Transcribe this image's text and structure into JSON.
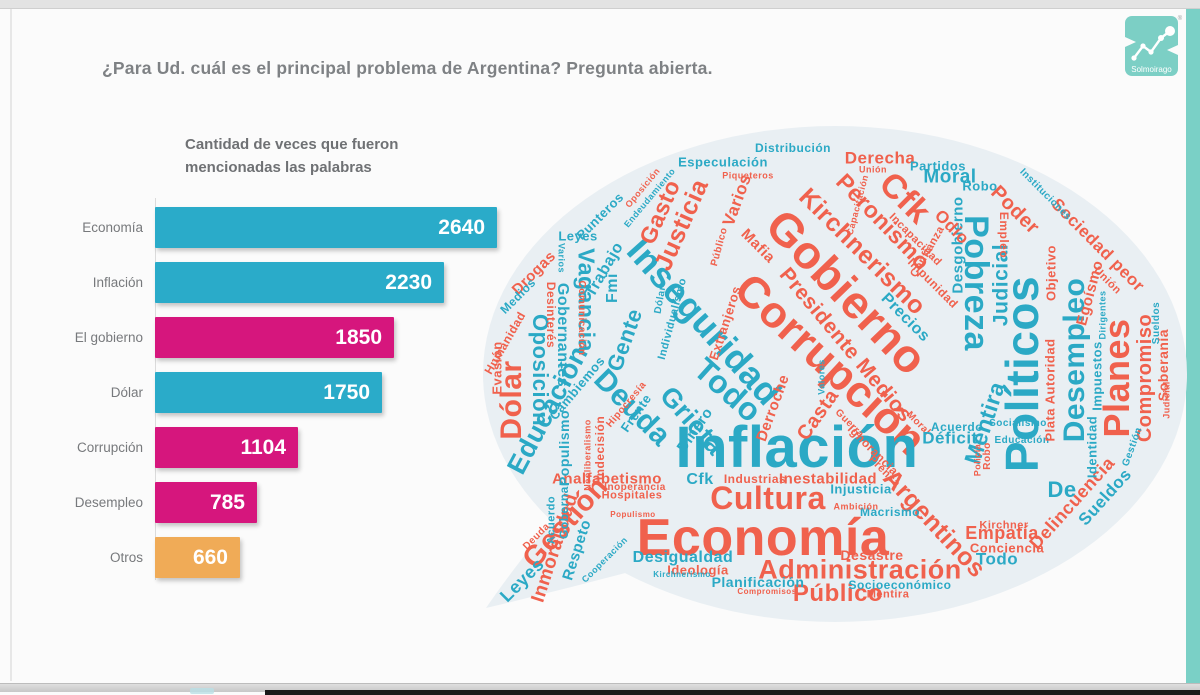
{
  "page": {
    "title": "¿Para Ud. cuál es el principal problema de Argentina? Pregunta abierta."
  },
  "logo": {
    "brand": "Solmoirago",
    "registered": "®",
    "color": "#7ccfc5"
  },
  "heading": {
    "line1": "Cantidad de veces que fueron",
    "line2": "mencionadas las palabras"
  },
  "chart_data": {
    "type": "bar",
    "orientation": "horizontal",
    "title": "Cantidad de veces que fueron mencionadas las palabras",
    "categories": [
      "Economía",
      "Inflación",
      "El gobierno",
      "Dólar",
      "Corrupción",
      "Desempleo",
      "Otros"
    ],
    "values": [
      2640,
      2230,
      1850,
      1750,
      1104,
      785,
      660
    ],
    "bar_colors": [
      "#2aabc9",
      "#2aabc9",
      "#d6167d",
      "#2aabc9",
      "#d6167d",
      "#d6167d",
      "#f0ab57"
    ],
    "value_labels_inside": true,
    "xlim": [
      0,
      2750
    ],
    "grid": false,
    "legend": "none"
  },
  "cloud": {
    "shape": "speech-bubble",
    "bubble_color": "#e9eff3",
    "teal": "#2ba9c5",
    "red": "#f0614d",
    "words": [
      [
        "Gobierno",
        367,
        174,
        46,
        46,
        1
      ],
      [
        "Corrupción",
        350,
        247,
        44,
        43,
        1
      ],
      [
        "Inseguridad",
        224,
        204,
        36,
        48,
        0
      ],
      [
        "Inflación",
        317,
        330,
        58,
        0,
        0
      ],
      [
        "Cultura",
        288,
        380,
        32,
        0,
        1
      ],
      [
        "Economía",
        283,
        420,
        52,
        0,
        1
      ],
      [
        "Políticos",
        542,
        256,
        46,
        -90,
        0
      ],
      [
        "Pobreza",
        496,
        165,
        34,
        90,
        0
      ],
      [
        "Desempleo",
        595,
        242,
        30,
        -90,
        0
      ],
      [
        "Planes",
        637,
        260,
        36,
        -90,
        1
      ],
      [
        "Administración",
        380,
        452,
        27,
        0,
        1
      ],
      [
        "Público",
        358,
        476,
        24,
        0,
        1
      ],
      [
        "Todo",
        248,
        272,
        32,
        42,
        0
      ],
      [
        "Deuda",
        152,
        290,
        30,
        45,
        0
      ],
      [
        "Cfk",
        425,
        80,
        34,
        45,
        1
      ],
      [
        "Kirchnerismo",
        382,
        134,
        25,
        45,
        1
      ],
      [
        "Peronismo",
        403,
        104,
        23,
        46,
        1
      ],
      [
        "Presidente Medios",
        366,
        227,
        21,
        50,
        1
      ],
      [
        "Dólar",
        32,
        282,
        30,
        -90,
        1
      ],
      [
        "Educación",
        68,
        292,
        27,
        -62,
        0
      ],
      [
        "Gestión",
        86,
        405,
        29,
        -48,
        1
      ],
      [
        "Vagancia",
        106,
        182,
        23,
        90,
        0
      ],
      [
        "Oposición",
        60,
        252,
        22,
        90,
        0
      ],
      [
        "Grieta",
        212,
        303,
        27,
        48,
        0
      ],
      [
        "Justicia",
        202,
        107,
        25,
        -66,
        1
      ],
      [
        "Gasto",
        180,
        94,
        23,
        -66,
        1
      ],
      [
        "Argentinos",
        454,
        406,
        25,
        47,
        1
      ],
      [
        "Mentira",
        505,
        305,
        23,
        -72,
        0
      ],
      [
        "Judicial",
        521,
        167,
        21,
        -90,
        0
      ],
      [
        "Compromiso",
        665,
        260,
        20,
        -90,
        1
      ],
      [
        "Gente",
        145,
        222,
        22,
        -70,
        0
      ],
      [
        "Inmoralidad",
        75,
        430,
        19,
        -72,
        1
      ],
      [
        "Poder",
        535,
        92,
        20,
        45,
        1
      ],
      [
        "Moral",
        470,
        59,
        19,
        0,
        0
      ],
      [
        "Derecha",
        400,
        40,
        17,
        0,
        1
      ],
      [
        "Sociedad peor",
        618,
        127,
        17,
        45,
        1
      ],
      [
        "Delincuencia",
        592,
        385,
        18,
        -48,
        1
      ],
      [
        "Sueldos",
        625,
        379,
        17,
        -48,
        0
      ],
      [
        "Empatía",
        522,
        415,
        18,
        0,
        1
      ],
      [
        "Desgobierno",
        478,
        127,
        15,
        -90,
        0
      ],
      [
        "Leyes",
        42,
        462,
        18,
        -45,
        0
      ],
      [
        "Respeto",
        97,
        432,
        15,
        -72,
        0
      ],
      [
        "Desigualdad",
        203,
        440,
        16,
        0,
        0
      ],
      [
        "Planificación",
        278,
        464,
        14,
        0,
        0
      ],
      [
        "Ideología",
        218,
        452,
        13,
        0,
        1
      ],
      [
        "Socioeconómico",
        420,
        467,
        12,
        0,
        0
      ],
      [
        "Mentira",
        408,
        477,
        11,
        0,
        1
      ],
      [
        "Desastre",
        392,
        437,
        14,
        0,
        1
      ],
      [
        "Todo",
        517,
        441,
        17,
        0,
        0
      ],
      [
        "Conciencia",
        527,
        430,
        13,
        0,
        1
      ],
      [
        "Kirchner",
        524,
        408,
        11,
        0,
        1
      ],
      [
        "Analfabetismo",
        127,
        361,
        15,
        0,
        1
      ],
      [
        "Inoperancia",
        155,
        370,
        10,
        0,
        1
      ],
      [
        "Hospitales",
        152,
        378,
        11,
        0,
        1
      ],
      [
        "Cfk",
        220,
        362,
        16,
        0,
        0
      ],
      [
        "Industrias",
        275,
        361,
        12,
        0,
        1
      ],
      [
        "Inestabilidad",
        348,
        361,
        15,
        0,
        1
      ],
      [
        "Injusticia",
        381,
        371,
        13,
        0,
        0
      ],
      [
        "Macrismo",
        410,
        394,
        12,
        0,
        0
      ],
      [
        "Ambición",
        376,
        389,
        9,
        0,
        1
      ],
      [
        "Ignorancia",
        393,
        332,
        12,
        45,
        1
      ],
      [
        "Prensa",
        404,
        354,
        11,
        45,
        1
      ],
      [
        "Guerra",
        369,
        306,
        10,
        45,
        1
      ],
      [
        "Moral",
        438,
        306,
        10,
        45,
        1
      ],
      [
        "Acuerdo",
        477,
        309,
        12,
        0,
        0
      ],
      [
        "Déficit",
        470,
        320,
        17,
        0,
        0
      ],
      [
        "Socialismo",
        538,
        306,
        10,
        0,
        0
      ],
      [
        "Educación",
        542,
        323,
        10,
        0,
        0
      ],
      [
        "Robo",
        508,
        338,
        10,
        -90,
        1
      ],
      [
        "Policía",
        498,
        342,
        9,
        -90,
        1
      ],
      [
        "De",
        582,
        372,
        22,
        0,
        0
      ],
      [
        "Impuestos",
        617,
        258,
        13,
        -90,
        0
      ],
      [
        "Identidad",
        612,
        329,
        13,
        -90,
        0
      ],
      [
        "Plata Autoridad",
        570,
        272,
        13,
        -90,
        1
      ],
      [
        "Objetivo",
        571,
        155,
        13,
        -90,
        1
      ],
      [
        "Egoísmo",
        610,
        175,
        15,
        -75,
        1
      ],
      [
        "Unión",
        627,
        163,
        11,
        45,
        1
      ],
      [
        "Dirigentes",
        623,
        197,
        9,
        -90,
        0
      ],
      [
        "Soberanía",
        683,
        247,
        14,
        -90,
        1
      ],
      [
        "Sueldos",
        677,
        205,
        10,
        -90,
        0
      ],
      [
        "Judicial",
        687,
        282,
        9,
        -90,
        1
      ],
      [
        "Gestión",
        653,
        329,
        10,
        -70,
        0
      ],
      [
        "Empleo",
        524,
        117,
        12,
        90,
        1
      ],
      [
        "Instituciones",
        565,
        77,
        10,
        45,
        0
      ],
      [
        "Odio",
        472,
        109,
        17,
        45,
        1
      ],
      [
        "Mafia",
        278,
        128,
        15,
        45,
        1
      ],
      [
        "Público",
        240,
        129,
        10,
        -75,
        1
      ],
      [
        "Varios",
        257,
        82,
        17,
        -70,
        1
      ],
      [
        "Robo",
        500,
        68,
        13,
        0,
        0
      ],
      [
        "Partidos",
        458,
        48,
        13,
        0,
        0
      ],
      [
        "Distribución",
        313,
        30,
        12,
        0,
        0
      ],
      [
        "Especulación",
        243,
        44,
        13,
        0,
        0
      ],
      [
        "Piqueteros",
        268,
        58,
        9,
        0,
        1
      ],
      [
        "Unión",
        393,
        52,
        9,
        0,
        1
      ],
      [
        "Capacitación",
        378,
        87,
        9,
        -75,
        1
      ],
      [
        "Incapacidad",
        435,
        122,
        11,
        45,
        1
      ],
      [
        "Confianza",
        448,
        134,
        11,
        -60,
        1
      ],
      [
        "Impunidad",
        453,
        165,
        12,
        45,
        1
      ],
      [
        "Precios",
        425,
        200,
        16,
        45,
        0
      ],
      [
        "Extranjeros",
        245,
        205,
        13,
        -72,
        1
      ],
      [
        "Individualismo",
        193,
        201,
        11,
        -75,
        0
      ],
      [
        "Dólar",
        181,
        182,
        10,
        -80,
        0
      ],
      [
        "Trabajo",
        125,
        152,
        16,
        -60,
        0
      ],
      [
        "Fmi",
        133,
        170,
        16,
        -90,
        0
      ],
      [
        "Gobernantes",
        82,
        217,
        16,
        90,
        0
      ],
      [
        "Desinterés",
        71,
        197,
        12,
        90,
        1
      ],
      [
        "Comunicación",
        101,
        200,
        10,
        90,
        1
      ],
      [
        "Leyes",
        98,
        118,
        13,
        0,
        0
      ],
      [
        "Varios",
        81,
        140,
        9,
        90,
        0
      ],
      [
        "Punteros",
        120,
        98,
        13,
        -45,
        0
      ],
      [
        "Drogas",
        54,
        155,
        15,
        -45,
        1
      ],
      [
        "Medios",
        38,
        178,
        12,
        -45,
        0
      ],
      [
        "Humanidad",
        25,
        225,
        12,
        -60,
        1
      ],
      [
        "Evasión",
        17,
        250,
        13,
        -90,
        1
      ],
      [
        "Endeudamiento",
        170,
        80,
        9,
        -50,
        0
      ],
      [
        "Oposición",
        163,
        70,
        9,
        -50,
        1
      ],
      [
        "Cambiemos",
        97,
        270,
        13,
        -50,
        0
      ],
      [
        "Hipocresía",
        147,
        287,
        10,
        -50,
        1
      ],
      [
        "Dinero",
        215,
        312,
        15,
        -55,
        0
      ],
      [
        "Frente",
        156,
        295,
        13,
        -55,
        0
      ],
      [
        "Casta",
        338,
        297,
        20,
        -55,
        1
      ],
      [
        "Derroche",
        293,
        290,
        15,
        -70,
        1
      ],
      [
        "Valores",
        342,
        259,
        9,
        -90,
        0
      ],
      [
        "Gobernar",
        84,
        392,
        12,
        -90,
        0
      ],
      [
        "Acuerdo",
        72,
        402,
        11,
        -90,
        0
      ],
      [
        "Deuda",
        57,
        419,
        10,
        -45,
        1
      ],
      [
        "Cooperación",
        125,
        442,
        9,
        -45,
        0
      ],
      [
        "Indecisión",
        120,
        330,
        12,
        -90,
        1
      ],
      [
        "Populismo",
        84,
        330,
        14,
        -90,
        0
      ],
      [
        "Neoliberalismo",
        108,
        337,
        9,
        -90,
        1
      ],
      [
        "Populismo",
        153,
        397,
        8,
        0,
        1
      ],
      [
        "Kirchnerismo",
        202,
        457,
        8,
        0,
        0
      ],
      [
        "Compromisos",
        287,
        474,
        8,
        0,
        1
      ]
    ]
  }
}
